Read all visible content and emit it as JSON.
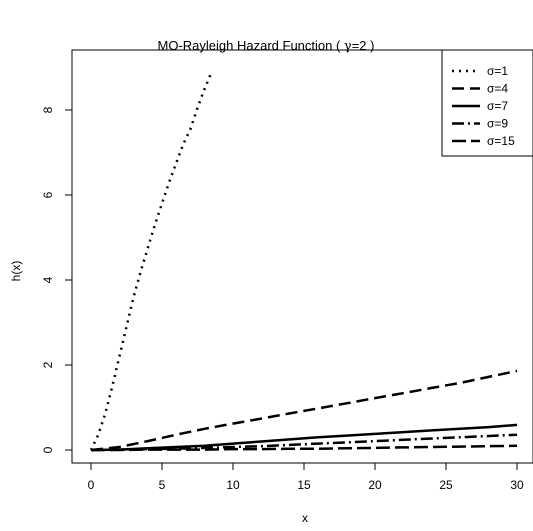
{
  "chart_data": {
    "type": "line",
    "title_prefix": "MO-Rayleigh Hazard Function ( ",
    "title_symbol": "γ",
    "title_suffix": "=2 )",
    "xlabel": "x",
    "ylabel": "h(x)",
    "xlim": [
      0,
      30
    ],
    "ylim": [
      0,
      8.9
    ],
    "xticks": [
      "0",
      "5",
      "10",
      "15",
      "20",
      "25",
      "30"
    ],
    "yticks": [
      "0",
      "2",
      "4",
      "6",
      "8"
    ],
    "grid": false,
    "legend_position": "top-right",
    "series": [
      {
        "name": "σ=1",
        "dash": "2,5",
        "x": [
          0,
          0.5,
          1,
          1.5,
          2,
          2.5,
          3,
          3.5,
          4,
          4.5,
          5,
          5.5,
          6,
          6.5,
          7,
          7.5,
          8,
          8.5
        ],
        "y": [
          0,
          0.35,
          0.85,
          1.5,
          2.2,
          2.9,
          3.6,
          4.2,
          4.75,
          5.3,
          5.8,
          6.3,
          6.75,
          7.2,
          7.55,
          8.05,
          8.5,
          8.9
        ]
      },
      {
        "name": "σ=4",
        "dash": "12,6",
        "x": [
          0,
          2,
          4,
          6,
          8,
          10,
          12,
          14,
          16,
          18,
          20,
          22,
          24,
          26,
          28,
          30
        ],
        "y": [
          0,
          0.07,
          0.21,
          0.36,
          0.5,
          0.62,
          0.74,
          0.86,
          0.98,
          1.1,
          1.22,
          1.34,
          1.46,
          1.58,
          1.72,
          1.86
        ]
      },
      {
        "name": "σ=7",
        "dash": "",
        "x": [
          0,
          2,
          4,
          6,
          8,
          10,
          12,
          14,
          16,
          18,
          20,
          22,
          24,
          26,
          28,
          30
        ],
        "y": [
          0,
          0.01,
          0.04,
          0.07,
          0.1,
          0.15,
          0.2,
          0.25,
          0.3,
          0.34,
          0.38,
          0.42,
          0.46,
          0.5,
          0.54,
          0.59
        ]
      },
      {
        "name": "σ=9",
        "dash": "12,4,2,4",
        "x": [
          0,
          2,
          4,
          6,
          8,
          10,
          12,
          14,
          16,
          18,
          20,
          22,
          24,
          26,
          28,
          30
        ],
        "y": [
          0,
          0.01,
          0.02,
          0.03,
          0.05,
          0.07,
          0.09,
          0.12,
          0.15,
          0.18,
          0.21,
          0.24,
          0.27,
          0.3,
          0.33,
          0.36
        ]
      },
      {
        "name": "σ=15",
        "dash": "14,5",
        "x": [
          0,
          2,
          4,
          6,
          8,
          10,
          12,
          14,
          16,
          18,
          20,
          22,
          24,
          26,
          28,
          30
        ],
        "y": [
          0,
          0.0,
          0.01,
          0.01,
          0.01,
          0.02,
          0.02,
          0.03,
          0.03,
          0.04,
          0.05,
          0.06,
          0.07,
          0.08,
          0.09,
          0.1
        ]
      }
    ]
  }
}
